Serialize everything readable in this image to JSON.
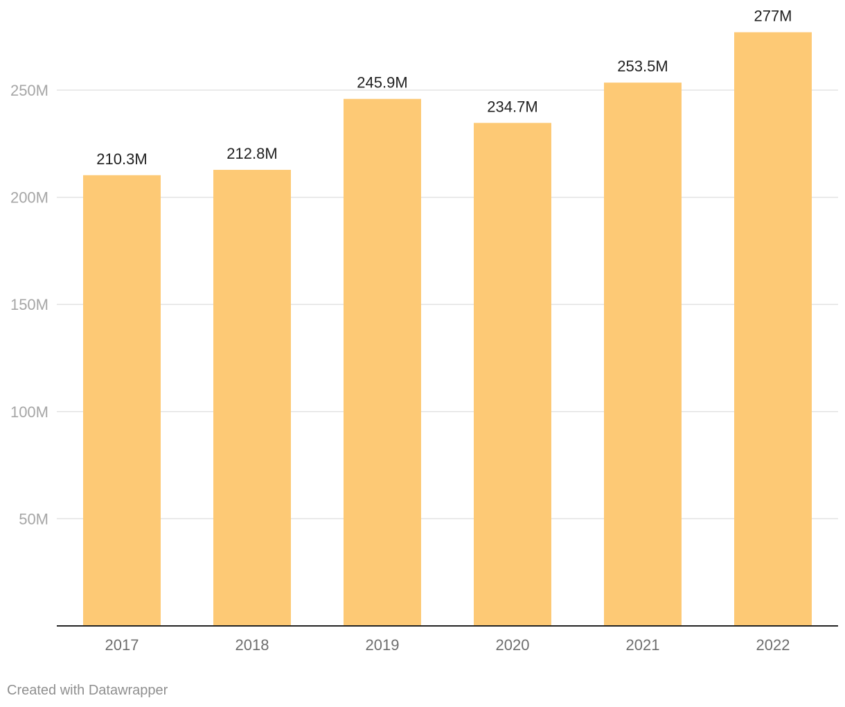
{
  "chart_data": {
    "type": "bar",
    "categories": [
      "2017",
      "2018",
      "2019",
      "2020",
      "2021",
      "2022"
    ],
    "values": [
      210.3,
      212.8,
      245.9,
      234.7,
      253.5,
      277
    ],
    "value_labels": [
      "210.3M",
      "212.8M",
      "245.9M",
      "234.7M",
      "253.5M",
      "277M"
    ],
    "y_ticks": [
      50,
      100,
      150,
      200,
      250
    ],
    "y_tick_labels": [
      "50M",
      "100M",
      "150M",
      "200M",
      "250M"
    ],
    "ylim": [
      0,
      277
    ],
    "grid": true,
    "title": "",
    "xlabel": "",
    "ylabel": "",
    "bar_color": "#fdc975"
  },
  "footer": {
    "credit": "Created with Datawrapper"
  }
}
